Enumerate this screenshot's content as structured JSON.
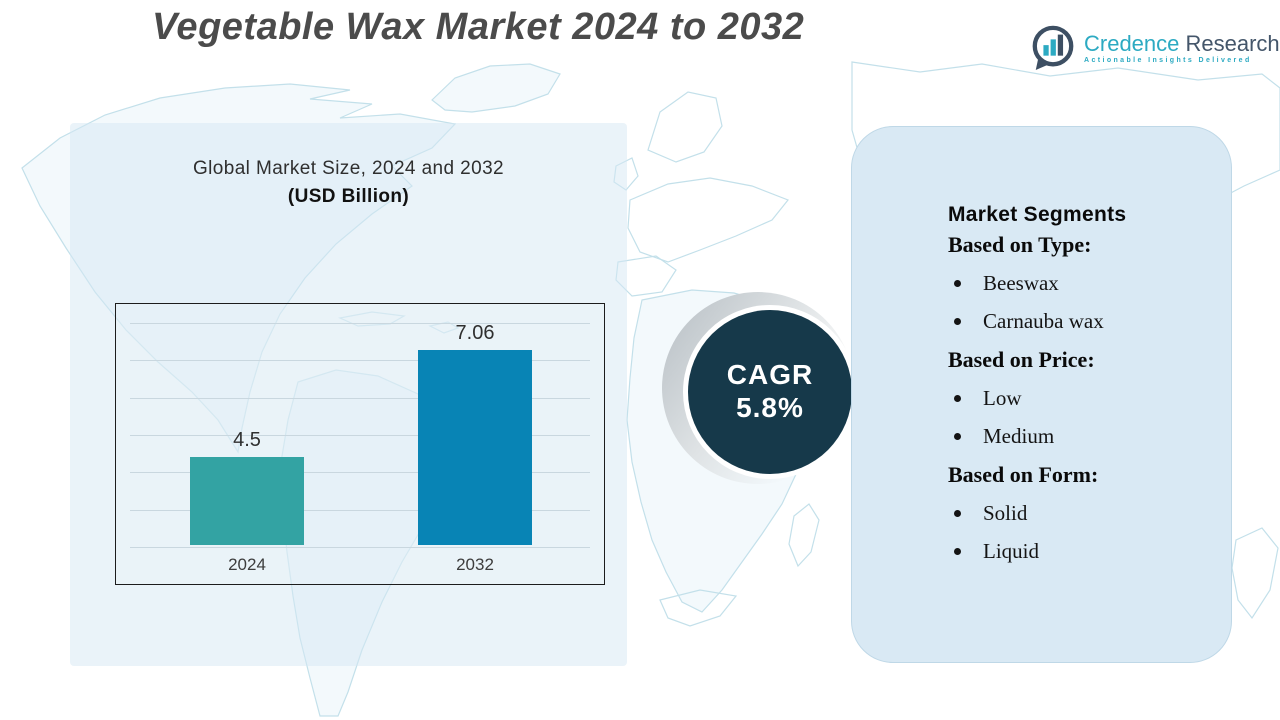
{
  "title": "Vegetable Wax Market 2024 to 2032",
  "logo": {
    "icon": "bar-chart-speech-bubble-icon",
    "brand_primary": "Credence",
    "brand_secondary": "Research",
    "tagline": "Actionable Insights Delivered",
    "brand_primary_color": "#2caac2",
    "brand_secondary_color": "#44566a"
  },
  "chart_data": {
    "type": "bar",
    "title": "Global Market Size, 2024 and 2032",
    "subtitle": "(USD Billion)",
    "categories": [
      "2024",
      "2032"
    ],
    "values": [
      4.5,
      7.06
    ],
    "value_labels": [
      "4.5",
      "7.06"
    ],
    "bar_colors": [
      "#33a3a3",
      "#0884b5"
    ],
    "ylim": [
      2.4,
      7.75
    ],
    "gridline_count": 7,
    "grid": true,
    "legend": false,
    "xlabel": "",
    "ylabel": ""
  },
  "cagr": {
    "label": "CAGR",
    "value": "5.8%",
    "circle_color": "#16394a"
  },
  "segments": {
    "heading": "Market Segments",
    "panel_color": "#d9e9f4",
    "groups": [
      {
        "label": "Based on Type:",
        "items": [
          "Beeswax",
          "Carnauba wax"
        ]
      },
      {
        "label": "Based on Price:",
        "items": [
          "Low",
          "Medium"
        ]
      },
      {
        "label": "Based on Form:",
        "items": [
          "Solid",
          "Liquid"
        ]
      }
    ]
  }
}
